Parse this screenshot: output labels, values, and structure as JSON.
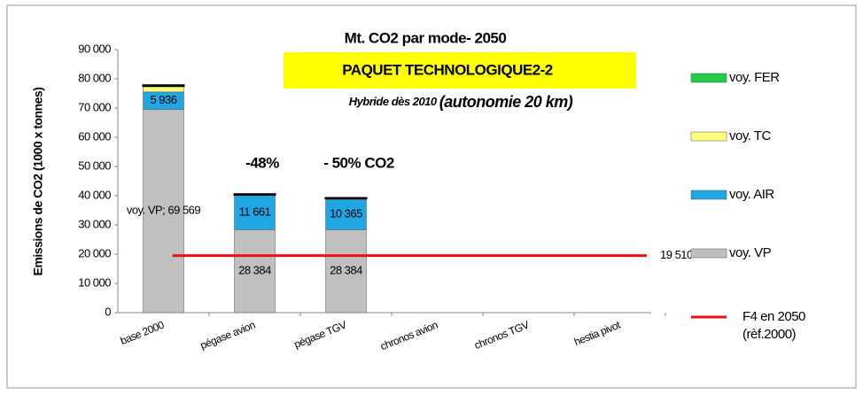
{
  "chart_data": {
    "type": "bar",
    "title": "Mt. CO2 par mode- 2050",
    "subtitle": "PAQUET TECHNOLOGIQUE2-2",
    "note_small": "Hybride dès 2010",
    "note_large": "(autonomie 20 km)",
    "y_label": "Emissions de CO2 (1000 x tonnes)",
    "categories": [
      "base 2000",
      "pégase avion",
      "pégase TGV",
      "chronos avion",
      "chronos TGV",
      "hestia pivot"
    ],
    "series": [
      {
        "name": "voy. VP",
        "color": "#c0c0c0",
        "values": [
          69569,
          28384,
          28384,
          null,
          null,
          null
        ],
        "value_labels": [
          "voy. VP; 69 569",
          "28 384",
          "28 384",
          null,
          null,
          null
        ]
      },
      {
        "name": "voy. AIR",
        "color": "#1fa6e3",
        "values": [
          5936,
          11661,
          10365,
          null,
          null,
          null
        ],
        "value_labels": [
          "5 936",
          "11 661",
          "10 365",
          null,
          null,
          null
        ]
      },
      {
        "name": "voy. TC",
        "color": "#ffff80",
        "values": [
          2000,
          300,
          300,
          null,
          null,
          null
        ]
      },
      {
        "name": "voy. FER",
        "color": "#22cc44",
        "values": [
          300,
          200,
          200,
          null,
          null,
          null
        ]
      }
    ],
    "reference_line": {
      "name": "F4 en 2050 (rèf.2000)",
      "value": 19510,
      "value_label": "19 510",
      "color": "#ee1111"
    },
    "annotations": [
      "-48%",
      "- 50% CO2"
    ],
    "ylim": [
      0,
      90000
    ],
    "yticks": [
      0,
      {
        "value": 10000,
        "label": "10 000"
      },
      {
        "value": 20000,
        "label": "20 000"
      },
      {
        "value": 30000,
        "label": "30 000"
      },
      {
        "value": 40000,
        "label": "40 000"
      },
      {
        "value": 50000,
        "label": "50 000"
      },
      {
        "value": 60000,
        "label": "60 000"
      },
      {
        "value": 70000,
        "label": "70 000"
      },
      {
        "value": 80000,
        "label": "80 000"
      },
      {
        "value": 90000,
        "label": "90 000"
      }
    ],
    "legend": "right"
  }
}
